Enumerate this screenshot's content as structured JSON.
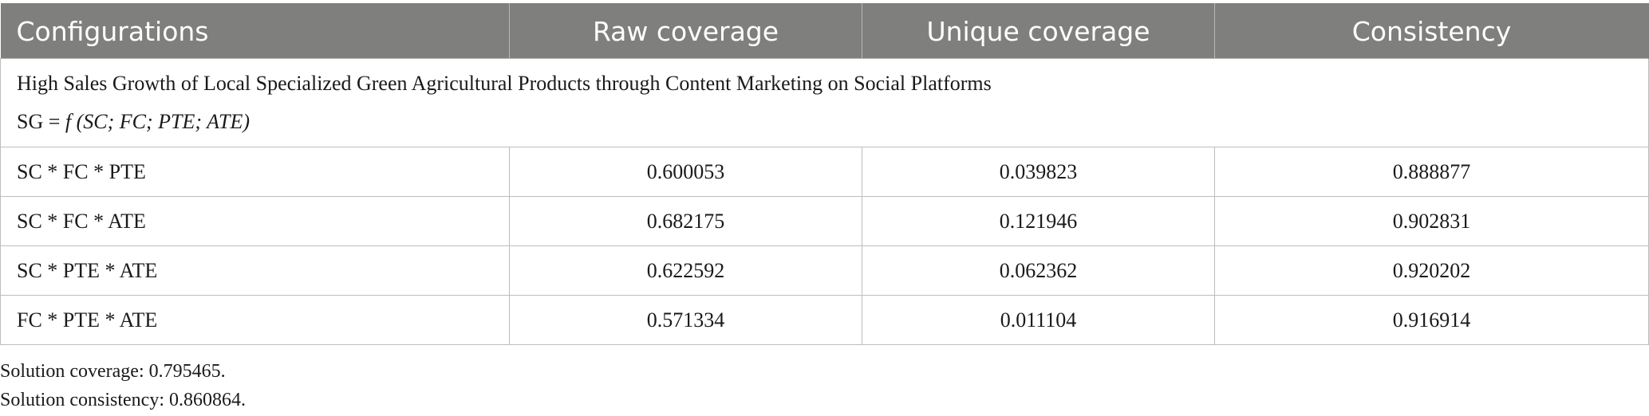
{
  "table": {
    "headers": [
      "Configurations",
      "Raw coverage",
      "Unique coverage",
      "Consistency"
    ],
    "section": {
      "title": "High Sales Growth of Local Specialized Green Agricultural Products through Content Marketing on Social Platforms",
      "formula_prefix": "SG = ",
      "formula_italic": "f (SC; FC; PTE; ATE)"
    },
    "rows": [
      {
        "configuration": "SC * FC * PTE",
        "raw_coverage": "0.600053",
        "unique_coverage": "0.039823",
        "consistency": "0.888877"
      },
      {
        "configuration": "SC * FC * ATE",
        "raw_coverage": "0.682175",
        "unique_coverage": "0.121946",
        "consistency": "0.902831"
      },
      {
        "configuration": "SC * PTE * ATE",
        "raw_coverage": "0.622592",
        "unique_coverage": "0.062362",
        "consistency": "0.920202"
      },
      {
        "configuration": "FC * PTE * ATE",
        "raw_coverage": "0.571334",
        "unique_coverage": "0.011104",
        "consistency": "0.916914"
      }
    ]
  },
  "footnotes": {
    "solution_coverage": "Solution coverage: 0.795465.",
    "solution_consistency": "Solution consistency: 0.860864."
  },
  "colors": {
    "header_background": "#7f7f7e",
    "header_text": "#ffffff",
    "grid_line": "#bdbdbd"
  }
}
